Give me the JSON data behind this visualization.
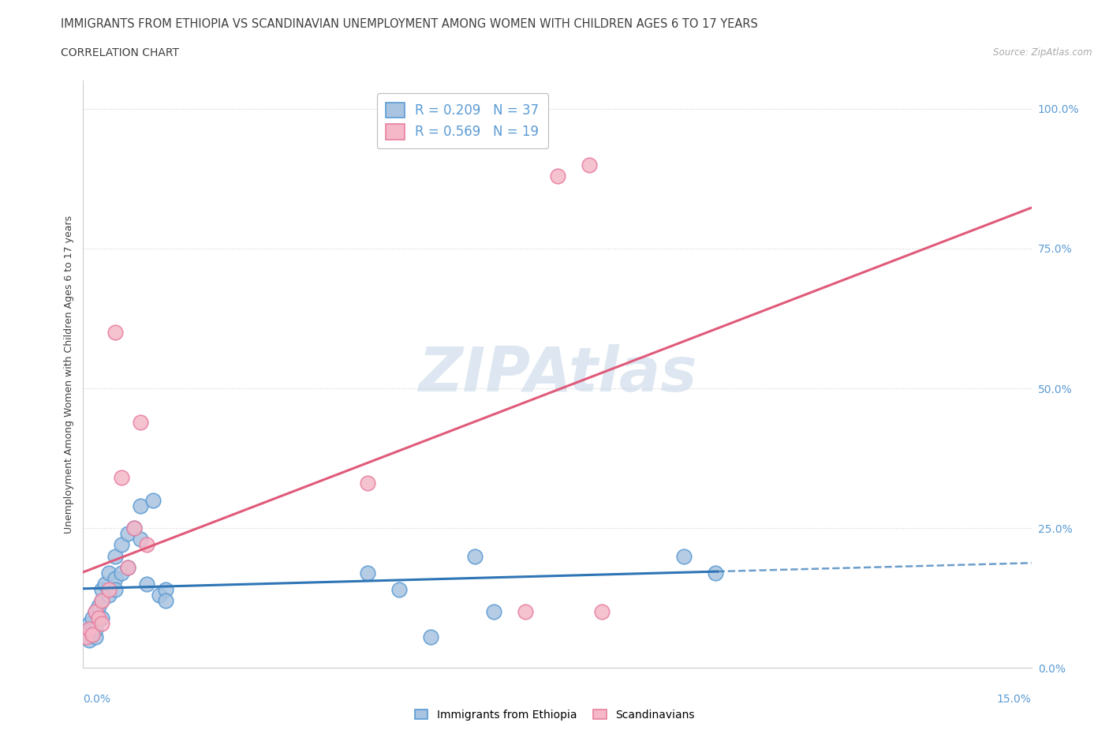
{
  "title": "IMMIGRANTS FROM ETHIOPIA VS SCANDINAVIAN UNEMPLOYMENT AMONG WOMEN WITH CHILDREN AGES 6 TO 17 YEARS",
  "subtitle": "CORRELATION CHART",
  "source": "Source: ZipAtlas.com",
  "ylabel": "Unemployment Among Women with Children Ages 6 to 17 years",
  "xlim": [
    0.0,
    0.15
  ],
  "ylim": [
    0.0,
    1.05
  ],
  "yticks": [
    0.0,
    0.25,
    0.5,
    0.75,
    1.0
  ],
  "yticklabels": [
    "0.0%",
    "25.0%",
    "50.0%",
    "75.0%",
    "100.0%"
  ],
  "ethiopia_color": "#a8c4e0",
  "ethiopia_edge": "#5b9bd5",
  "scand_color": "#f4b8c8",
  "scand_edge": "#e87fa0",
  "line_ethiopia_color": "#2e75b6",
  "line_scand_color": "#e05a7a",
  "r_ethiopia": 0.209,
  "n_ethiopia": 37,
  "r_scand": 0.569,
  "n_scand": 19,
  "watermark": "ZIPAtlas",
  "watermark_color": "#c8d8e8",
  "grid_color": "#d0d0d0",
  "title_color": "#404040",
  "axis_color": "#5b9bd5",
  "background_color": "#ffffff",
  "eth_x": [
    0.0005,
    0.001,
    0.001,
    0.0015,
    0.0015,
    0.002,
    0.002,
    0.002,
    0.0025,
    0.003,
    0.003,
    0.003,
    0.0035,
    0.004,
    0.004,
    0.005,
    0.005,
    0.005,
    0.006,
    0.006,
    0.007,
    0.007,
    0.008,
    0.009,
    0.009,
    0.01,
    0.011,
    0.012,
    0.013,
    0.013,
    0.045,
    0.05,
    0.055,
    0.062,
    0.065,
    0.095,
    0.1
  ],
  "eth_y": [
    0.06,
    0.05,
    0.08,
    0.07,
    0.09,
    0.055,
    0.07,
    0.1,
    0.11,
    0.09,
    0.12,
    0.14,
    0.15,
    0.13,
    0.17,
    0.16,
    0.2,
    0.14,
    0.17,
    0.22,
    0.18,
    0.24,
    0.25,
    0.23,
    0.29,
    0.15,
    0.3,
    0.13,
    0.14,
    0.12,
    0.17,
    0.14,
    0.055,
    0.2,
    0.1,
    0.2,
    0.17
  ],
  "scand_x": [
    0.0005,
    0.001,
    0.0015,
    0.002,
    0.0025,
    0.003,
    0.003,
    0.004,
    0.005,
    0.006,
    0.007,
    0.008,
    0.009,
    0.01,
    0.045,
    0.07,
    0.075,
    0.08,
    0.082
  ],
  "scand_y": [
    0.055,
    0.07,
    0.06,
    0.1,
    0.09,
    0.12,
    0.08,
    0.14,
    0.6,
    0.34,
    0.18,
    0.25,
    0.44,
    0.22,
    0.33,
    0.1,
    0.88,
    0.9,
    0.1
  ]
}
